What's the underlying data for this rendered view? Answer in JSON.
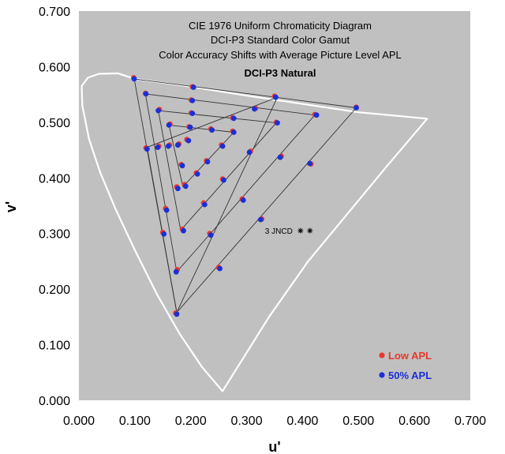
{
  "chart_data": {
    "type": "scatter",
    "title_lines": [
      "CIE 1976 Uniform Chromaticity Diagram",
      "DCI-P3 Standard Color Gamut",
      "Color Accuracy Shifts with Average Picture Level APL"
    ],
    "subtitle": "DCI-P3 Natural",
    "xlabel": "u'",
    "ylabel": "v'",
    "xlim": [
      0,
      0.7
    ],
    "ylim": [
      0,
      0.7
    ],
    "x_ticks": [
      "0.000",
      "0.100",
      "0.200",
      "0.300",
      "0.400",
      "0.500",
      "0.600",
      "0.700"
    ],
    "y_ticks": [
      "0.000",
      "0.100",
      "0.200",
      "0.300",
      "0.400",
      "0.500",
      "0.600",
      "0.700"
    ],
    "annotation": {
      "text": "3 JNCD",
      "u": 0.385,
      "v": 0.305
    },
    "colors": {
      "plot_bg": "#c0c0c0",
      "locus": "#ffffff",
      "triangle": "#333333",
      "low_apl": "#e8392b",
      "apl50": "#1c2fd6"
    },
    "spectral_locus": [
      [
        0.2568,
        0.0165
      ],
      [
        0.22,
        0.06
      ],
      [
        0.18,
        0.12
      ],
      [
        0.14,
        0.19
      ],
      [
        0.1,
        0.27
      ],
      [
        0.065,
        0.345
      ],
      [
        0.038,
        0.41
      ],
      [
        0.018,
        0.47
      ],
      [
        0.006,
        0.53
      ],
      [
        0.005,
        0.565
      ],
      [
        0.016,
        0.58
      ],
      [
        0.035,
        0.587
      ],
      [
        0.07,
        0.588
      ],
      [
        0.1,
        0.578
      ],
      [
        0.2,
        0.564
      ],
      [
        0.3,
        0.548
      ],
      [
        0.4,
        0.533
      ],
      [
        0.5,
        0.518
      ],
      [
        0.623,
        0.5065
      ],
      [
        0.55,
        0.42
      ],
      [
        0.48,
        0.335
      ],
      [
        0.41,
        0.25
      ],
      [
        0.34,
        0.15
      ],
      [
        0.2568,
        0.0165
      ]
    ],
    "triangles": [
      [
        [
          0.099,
          0.578
        ],
        [
          0.496,
          0.526
        ],
        [
          0.175,
          0.158
        ]
      ],
      [
        [
          0.119,
          0.551
        ],
        [
          0.422,
          0.513
        ],
        [
          0.175,
          0.231
        ]
      ],
      [
        [
          0.142,
          0.521
        ],
        [
          0.353,
          0.499
        ],
        [
          0.182,
          0.306
        ]
      ],
      [
        [
          0.161,
          0.495
        ],
        [
          0.277,
          0.482
        ],
        [
          0.186,
          0.384
        ]
      ],
      [
        [
          0.122,
          0.455
        ],
        [
          0.355,
          0.545
        ],
        [
          0.175,
          0.158
        ]
      ]
    ],
    "series": [
      {
        "name": "Low APL",
        "points": [
          [
            0.098,
            0.58
          ],
          [
            0.203,
            0.564
          ],
          [
            0.35,
            0.547
          ],
          [
            0.496,
            0.527
          ],
          [
            0.119,
            0.552
          ],
          [
            0.201,
            0.54
          ],
          [
            0.316,
            0.525
          ],
          [
            0.422,
            0.514
          ],
          [
            0.144,
            0.523
          ],
          [
            0.201,
            0.517
          ],
          [
            0.275,
            0.508
          ],
          [
            0.353,
            0.5
          ],
          [
            0.163,
            0.497
          ],
          [
            0.197,
            0.492
          ],
          [
            0.236,
            0.488
          ],
          [
            0.275,
            0.484
          ],
          [
            0.12,
            0.454
          ],
          [
            0.143,
            0.457
          ],
          [
            0.162,
            0.459
          ],
          [
            0.179,
            0.461
          ],
          [
            0.193,
            0.469
          ],
          [
            0.183,
            0.424
          ],
          [
            0.21,
            0.409
          ],
          [
            0.228,
            0.431
          ],
          [
            0.255,
            0.459
          ],
          [
            0.307,
            0.448
          ],
          [
            0.362,
            0.439
          ],
          [
            0.415,
            0.425
          ],
          [
            0.175,
            0.384
          ],
          [
            0.189,
            0.388
          ],
          [
            0.223,
            0.355
          ],
          [
            0.257,
            0.398
          ],
          [
            0.292,
            0.362
          ],
          [
            0.234,
            0.3
          ],
          [
            0.185,
            0.308
          ],
          [
            0.15,
            0.302
          ],
          [
            0.155,
            0.345
          ],
          [
            0.327,
            0.326
          ],
          [
            0.25,
            0.239
          ],
          [
            0.176,
            0.235
          ],
          [
            0.173,
            0.157
          ]
        ]
      },
      {
        "name": "50% APL",
        "points": [
          [
            0.099,
            0.578
          ],
          [
            0.205,
            0.563
          ],
          [
            0.352,
            0.545
          ],
          [
            0.496,
            0.526
          ],
          [
            0.12,
            0.551
          ],
          [
            0.203,
            0.539
          ],
          [
            0.314,
            0.524
          ],
          [
            0.425,
            0.513
          ],
          [
            0.142,
            0.521
          ],
          [
            0.203,
            0.516
          ],
          [
            0.277,
            0.507
          ],
          [
            0.355,
            0.499
          ],
          [
            0.161,
            0.495
          ],
          [
            0.199,
            0.491
          ],
          [
            0.238,
            0.486
          ],
          [
            0.277,
            0.482
          ],
          [
            0.122,
            0.452
          ],
          [
            0.141,
            0.455
          ],
          [
            0.16,
            0.457
          ],
          [
            0.177,
            0.459
          ],
          [
            0.196,
            0.467
          ],
          [
            0.185,
            0.422
          ],
          [
            0.212,
            0.407
          ],
          [
            0.23,
            0.429
          ],
          [
            0.257,
            0.457
          ],
          [
            0.305,
            0.446
          ],
          [
            0.36,
            0.437
          ],
          [
            0.413,
            0.426
          ],
          [
            0.177,
            0.381
          ],
          [
            0.191,
            0.385
          ],
          [
            0.225,
            0.352
          ],
          [
            0.259,
            0.396
          ],
          [
            0.294,
            0.36
          ],
          [
            0.236,
            0.297
          ],
          [
            0.187,
            0.305
          ],
          [
            0.152,
            0.299
          ],
          [
            0.157,
            0.342
          ],
          [
            0.325,
            0.325
          ],
          [
            0.252,
            0.237
          ],
          [
            0.174,
            0.231
          ],
          [
            0.175,
            0.155
          ]
        ]
      }
    ],
    "legend": {
      "placement": "bottom-right",
      "entries": [
        {
          "label": "Low APL",
          "color": "#e8392b"
        },
        {
          "label": "50% APL",
          "color": "#1c2fd6"
        }
      ]
    }
  }
}
